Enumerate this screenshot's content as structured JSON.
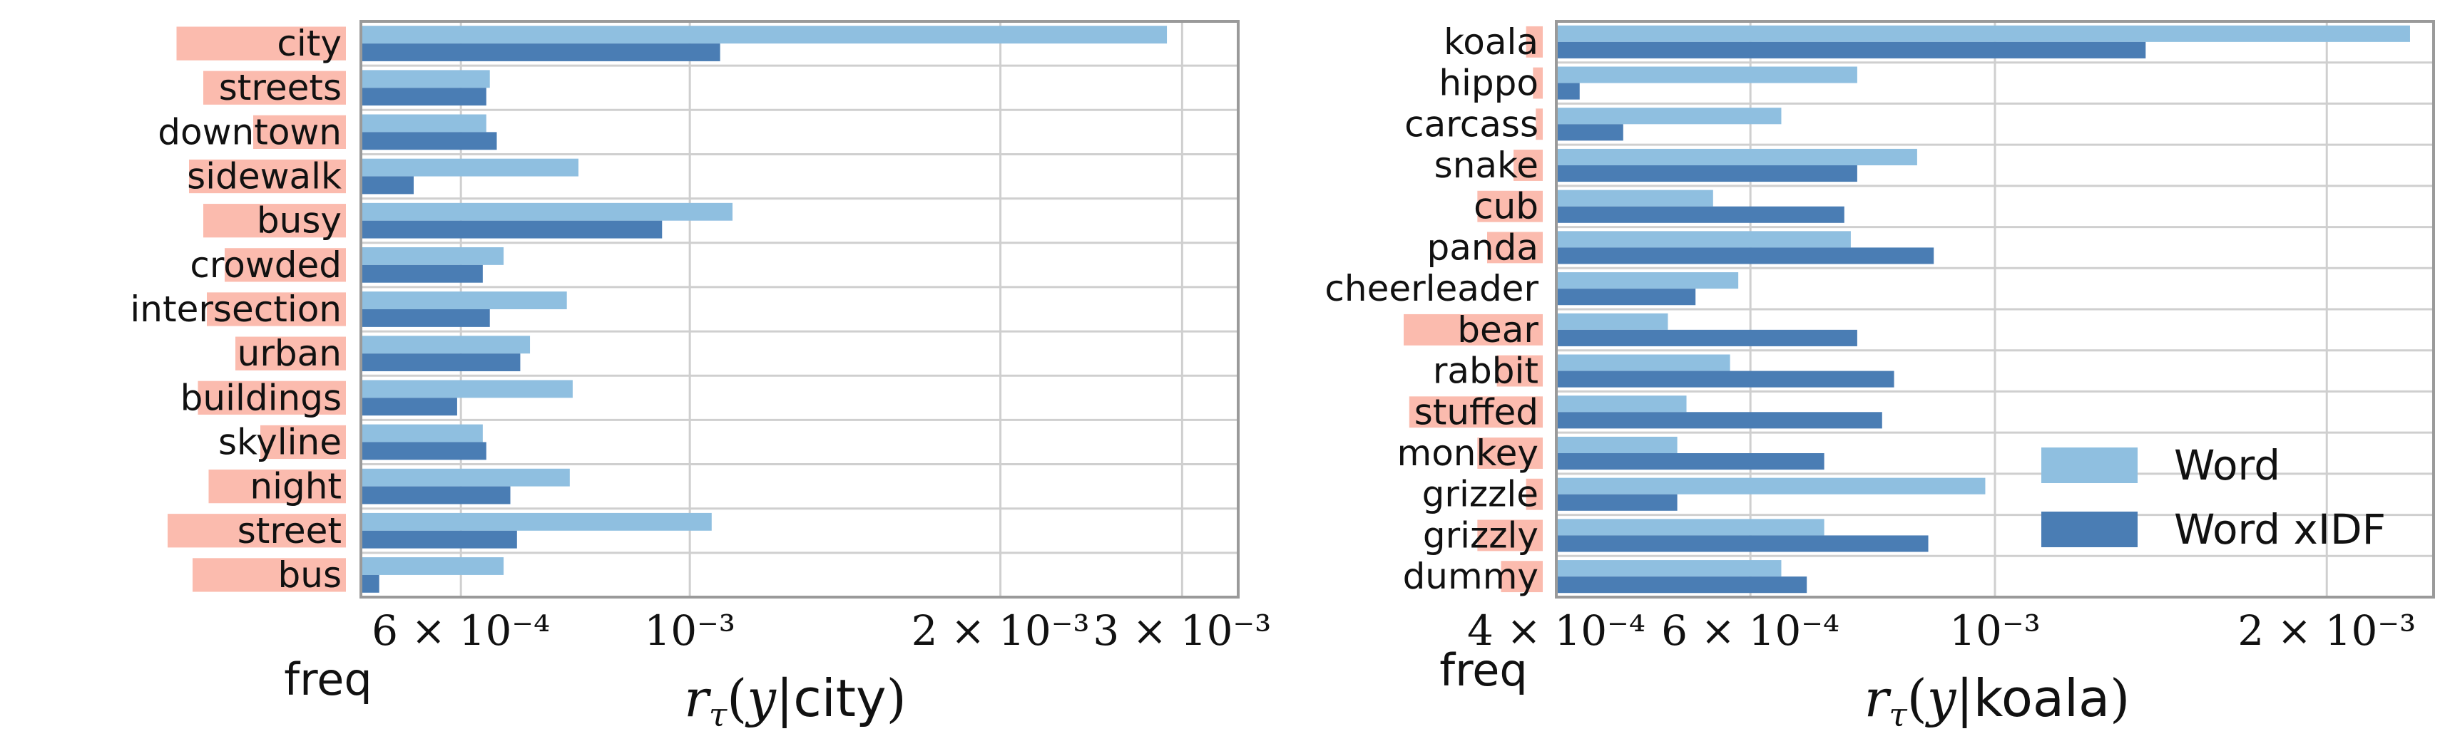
{
  "legend": {
    "position": "lower-right",
    "items": [
      {
        "name": "Word",
        "color": "#8fbfe0"
      },
      {
        "name": "Word xIDF",
        "color": "#4a7db4"
      }
    ]
  },
  "freq_label": "freq",
  "freq_color": "#fbbbae",
  "chart_data": [
    {
      "type": "bar",
      "orientation": "horizontal",
      "xscale": "log",
      "xlim": [
        0.00048,
        0.0034
      ],
      "xlabel": "r_τ(y|city)",
      "xlabel_var": "y",
      "xlabel_word": "city",
      "xticks": [
        {
          "value": 0.0006,
          "label": "6 × 10⁻⁴"
        },
        {
          "value": 0.001,
          "label": "10⁻³"
        },
        {
          "value": 0.002,
          "label": "2 × 10⁻³"
        },
        {
          "value": 0.003,
          "label": "3 × 10⁻³"
        }
      ],
      "grid": true,
      "categories": [
        "city",
        "streets",
        "downtown",
        "sidewalk",
        "busy",
        "crowded",
        "intersection",
        "urban",
        "buildings",
        "skyline",
        "night",
        "street",
        "bus"
      ],
      "freq": [
        0.95,
        0.8,
        0.52,
        0.88,
        0.8,
        0.68,
        0.78,
        0.62,
        0.83,
        0.48,
        0.77,
        1.0,
        0.86
      ],
      "series": [
        {
          "name": "Word",
          "values": [
            0.0029,
            0.00064,
            0.000635,
            0.00078,
            0.0011,
            0.00066,
            0.00076,
            0.0007,
            0.00077,
            0.00063,
            0.000765,
            0.00105,
            0.00066
          ]
        },
        {
          "name": "Word xIDF",
          "values": [
            0.00107,
            0.000635,
            0.00065,
            0.00054,
            0.00094,
            0.00063,
            0.00064,
            0.000685,
            0.000595,
            0.000635,
            0.00067,
            0.00068,
            0.0005
          ]
        }
      ]
    },
    {
      "type": "bar",
      "orientation": "horizontal",
      "xscale": "log",
      "xlim": [
        0.0004,
        0.0025
      ],
      "xlabel": "r_τ(y|koala)",
      "xlabel_var": "y",
      "xlabel_word": "koala",
      "xticks": [
        {
          "value": 0.0004,
          "label": "4 × 10⁻⁴"
        },
        {
          "value": 0.0006,
          "label": "6 × 10⁻⁴"
        },
        {
          "value": 0.001,
          "label": "10⁻³"
        },
        {
          "value": 0.002,
          "label": "2 × 10⁻³"
        }
      ],
      "grid": true,
      "categories": [
        "koala",
        "hippo",
        "carcass",
        "snake",
        "cub",
        "panda",
        "cheerleader",
        "bear",
        "rabbit",
        "stuffed",
        "monkey",
        "grizzle",
        "grizzly",
        "dummy"
      ],
      "freq": [
        0.12,
        0.07,
        0.05,
        0.21,
        0.47,
        0.4,
        0.0,
        1.0,
        0.33,
        0.96,
        0.47,
        0.12,
        0.47,
        0.3
      ],
      "series": [
        {
          "name": "Word",
          "values": [
            0.00238,
            0.00075,
            0.00064,
            0.00085,
            0.000555,
            0.00074,
            0.000585,
            0.000505,
            0.000575,
            0.000525,
            0.000515,
            0.00098,
            0.0007,
            0.00064
          ]
        },
        {
          "name": "Word xIDF",
          "values": [
            0.00137,
            0.00042,
            0.00046,
            0.00075,
            0.00073,
            0.00088,
            0.000535,
            0.00075,
            0.00081,
            0.00079,
            0.0007,
            0.000515,
            0.00087,
            0.000675
          ]
        }
      ]
    }
  ]
}
